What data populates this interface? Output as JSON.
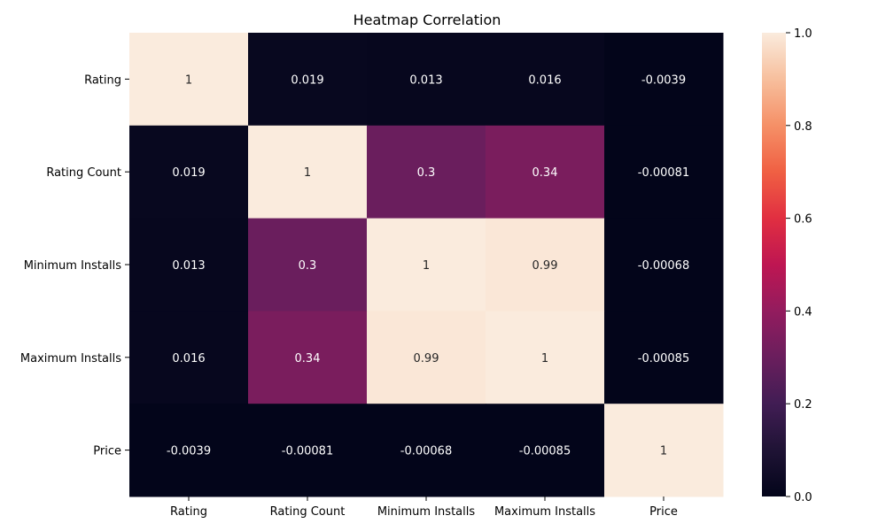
{
  "chart_data": {
    "type": "heatmap",
    "title": "Heatmap Correlation",
    "xlabel": "",
    "ylabel": "",
    "x_categories": [
      "Rating",
      "Rating Count",
      "Minimum Installs",
      "Maximum Installs",
      "Price"
    ],
    "y_categories": [
      "Rating",
      "Rating Count",
      "Minimum Installs",
      "Maximum Installs",
      "Price"
    ],
    "values": [
      [
        1,
        0.019,
        0.013,
        0.016,
        -0.0039
      ],
      [
        0.019,
        1,
        0.3,
        0.34,
        -0.00081
      ],
      [
        0.013,
        0.3,
        1,
        0.99,
        -0.00068
      ],
      [
        0.016,
        0.34,
        0.99,
        1,
        -0.00085
      ],
      [
        -0.0039,
        -0.00081,
        -0.00068,
        -0.00085,
        1
      ]
    ],
    "annotations": [
      [
        "1",
        "0.019",
        "0.013",
        "0.016",
        "-0.0039"
      ],
      [
        "0.019",
        "1",
        "0.3",
        "0.34",
        "-0.00081"
      ],
      [
        "0.013",
        "0.3",
        "1",
        "0.99",
        "-0.00068"
      ],
      [
        "0.016",
        "0.34",
        "0.99",
        "1",
        "-0.00085"
      ],
      [
        "-0.0039",
        "-0.00081",
        "-0.00068",
        "-0.00085",
        "1"
      ]
    ],
    "colorbar": {
      "colormap": "rocket",
      "range": [
        0.0,
        1.0
      ],
      "ticks": [
        "0.0",
        "0.2",
        "0.4",
        "0.6",
        "0.8",
        "1.0"
      ]
    },
    "grid": false
  }
}
